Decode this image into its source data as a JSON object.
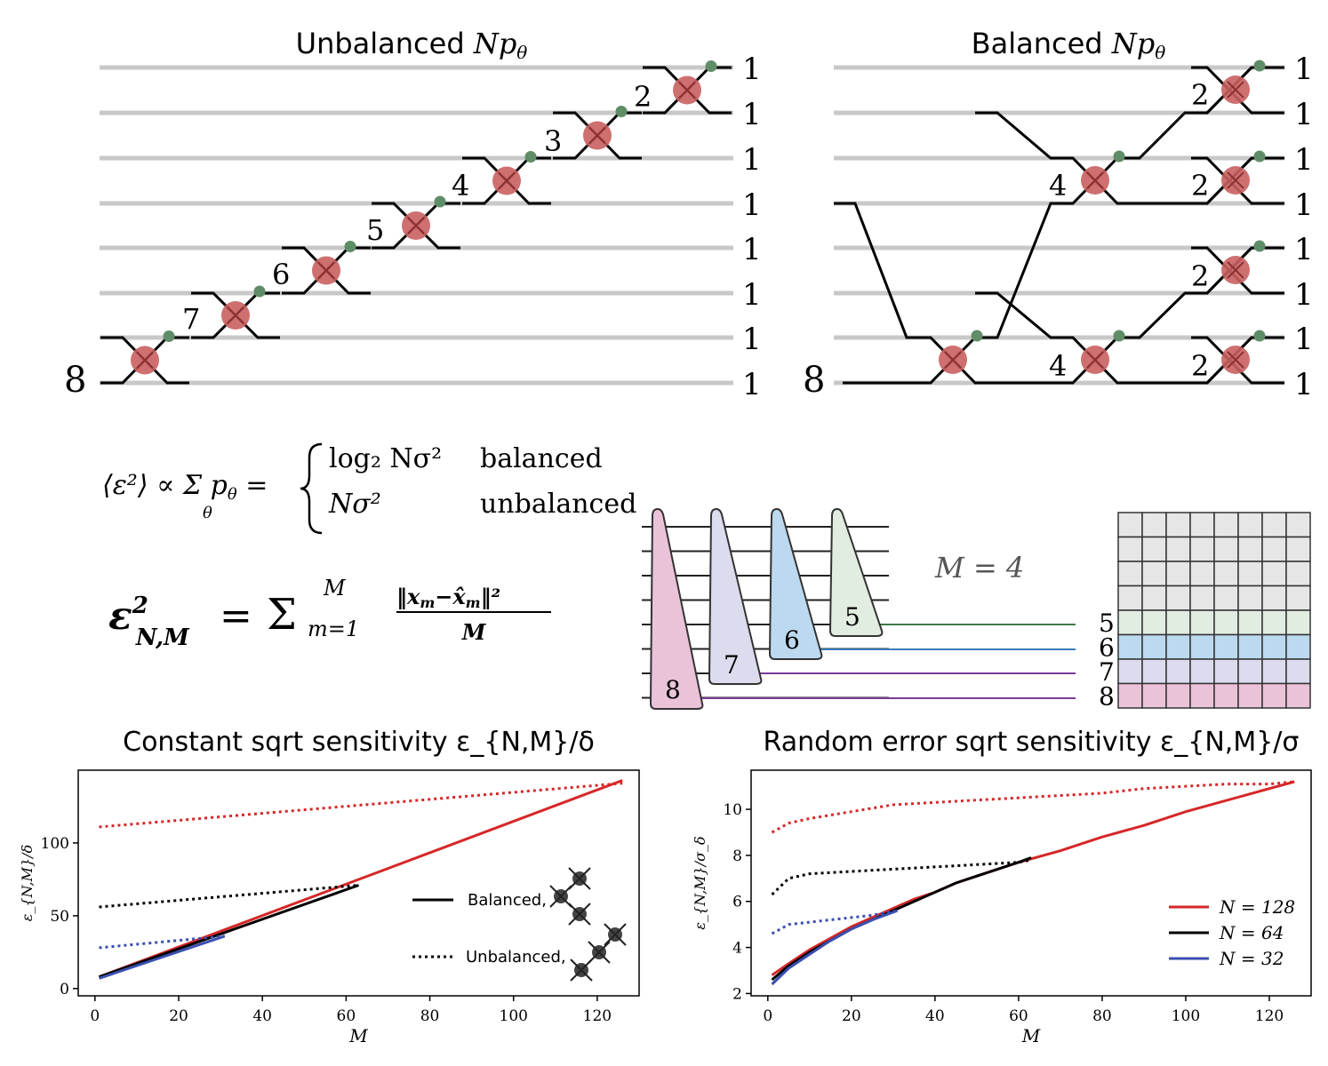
{
  "panels": {
    "unbalanced_title": "Unbalanced Np_θ",
    "balanced_title": "Balanced Np_θ"
  },
  "unbalanced_tree": {
    "input_label": "8",
    "output_labels": [
      "1",
      "1",
      "1",
      "1",
      "1",
      "1",
      "1",
      "1"
    ],
    "node_labels": [
      "7",
      "6",
      "5",
      "4",
      "3",
      "2"
    ]
  },
  "balanced_tree": {
    "input_label": "8",
    "output_labels": [
      "1",
      "1",
      "1",
      "1",
      "1",
      "1",
      "1",
      "1"
    ],
    "node_labels": [
      "4",
      "4",
      "2",
      "2",
      "2",
      "2"
    ]
  },
  "equations": {
    "eq1_lhs": "⟨ε²⟩ ∝ Σ_θ p_θ =",
    "eq1_case1": "log₂ Nσ²",
    "eq1_case1_label": "balanced",
    "eq1_case2": "Nσ²",
    "eq1_case2_label": "unbalanced",
    "eq2": "ε²_{N,M} = Σ_{m=1}^{M} ‖x_m − x̂_m‖² / M"
  },
  "schematic": {
    "m_label": "M = 4",
    "triangle_labels": [
      "8",
      "7",
      "6",
      "5"
    ],
    "row_labels": [
      "5",
      "6",
      "7",
      "8"
    ],
    "colors": {
      "c8": "#ebc3d9",
      "c7": "#dcdcee",
      "c6": "#bcd9ef",
      "c5": "#e1ede1",
      "grid_gray": "#e6e6e6"
    }
  },
  "colors": {
    "red": "#d62728",
    "black": "#000000",
    "blue": "#3a4fb0",
    "node_red": "#c96060",
    "node_green": "#5f8d67",
    "wire_gray": "#c8c8c8"
  },
  "legend": {
    "balanced": "Balanced,",
    "unbalanced": "Unbalanced,",
    "n128": "N = 128",
    "n64": "N = 64",
    "n32": "N = 32"
  },
  "chart_data": [
    {
      "type": "line",
      "title": "Constant sqrt sensitivity ε_{N,M}/δ",
      "xlabel": "M",
      "ylabel": "ε_{N,M}/δ",
      "xlim": [
        -4,
        130
      ],
      "ylim": [
        -5,
        150
      ],
      "xticks": [
        0,
        20,
        40,
        60,
        80,
        100,
        120
      ],
      "yticks": [
        0,
        50,
        100
      ],
      "series": [
        {
          "name": "Balanced, N = 128",
          "color": "#d62728",
          "style": "solid",
          "x": [
            1,
            126
          ],
          "y": [
            8,
            143
          ]
        },
        {
          "name": "Balanced, N = 64",
          "color": "#000000",
          "style": "solid",
          "x": [
            1,
            63
          ],
          "y": [
            8,
            71
          ]
        },
        {
          "name": "Balanced, N = 32",
          "color": "#3a4fb0",
          "style": "solid",
          "x": [
            1,
            31
          ],
          "y": [
            7,
            36
          ]
        },
        {
          "name": "Unbalanced, N = 128",
          "color": "#d62728",
          "style": "dotted",
          "x": [
            1,
            126
          ],
          "y": [
            111,
            141
          ]
        },
        {
          "name": "Unbalanced, N = 64",
          "color": "#000000",
          "style": "dotted",
          "x": [
            1,
            63
          ],
          "y": [
            56,
            71
          ]
        },
        {
          "name": "Unbalanced, N = 32",
          "color": "#3a4fb0",
          "style": "dotted",
          "x": [
            1,
            31
          ],
          "y": [
            28,
            36
          ]
        }
      ]
    },
    {
      "type": "line",
      "title": "Random error sqrt sensitivity ε_{N,M}/σ",
      "xlabel": "M",
      "ylabel": "ε_{N,M}/σ_δ",
      "xlim": [
        -4,
        130
      ],
      "ylim": [
        1.9,
        11.7
      ],
      "xticks": [
        0,
        20,
        40,
        60,
        80,
        100,
        120
      ],
      "yticks": [
        2,
        4,
        6,
        8,
        10
      ],
      "series": [
        {
          "name": "N = 128",
          "color": "#d62728",
          "style": "solid",
          "x": [
            1,
            5,
            10,
            15,
            20,
            25,
            30,
            35,
            40,
            45,
            50,
            55,
            60,
            70,
            80,
            90,
            100,
            110,
            120,
            126
          ],
          "y": [
            2.8,
            3.3,
            3.9,
            4.4,
            4.9,
            5.3,
            5.7,
            6.1,
            6.4,
            6.8,
            7.1,
            7.4,
            7.7,
            8.2,
            8.8,
            9.3,
            9.9,
            10.4,
            10.9,
            11.2
          ]
        },
        {
          "name": "N = 64",
          "color": "#000000",
          "style": "solid",
          "x": [
            1,
            5,
            10,
            15,
            20,
            25,
            30,
            35,
            40,
            45,
            50,
            55,
            60,
            63
          ],
          "y": [
            2.6,
            3.2,
            3.8,
            4.3,
            4.8,
            5.2,
            5.6,
            6.0,
            6.4,
            6.8,
            7.1,
            7.4,
            7.7,
            7.9
          ]
        },
        {
          "name": "N = 32",
          "color": "#3a4fb0",
          "style": "solid",
          "x": [
            1,
            5,
            10,
            15,
            20,
            25,
            31
          ],
          "y": [
            2.4,
            3.1,
            3.7,
            4.3,
            4.8,
            5.2,
            5.6
          ]
        },
        {
          "name": "",
          "color": "#d62728",
          "style": "dotted",
          "x": [
            1,
            5,
            10,
            20,
            30,
            40,
            50,
            60,
            70,
            80,
            90,
            100,
            110,
            120,
            126
          ],
          "y": [
            9.0,
            9.4,
            9.6,
            9.9,
            10.2,
            10.3,
            10.4,
            10.5,
            10.6,
            10.7,
            10.9,
            11.0,
            11.1,
            11.1,
            11.2
          ]
        },
        {
          "name": "",
          "color": "#000000",
          "style": "dotted",
          "x": [
            1,
            5,
            10,
            20,
            30,
            40,
            50,
            60,
            63
          ],
          "y": [
            6.3,
            7.0,
            7.2,
            7.3,
            7.4,
            7.5,
            7.6,
            7.7,
            7.8
          ]
        },
        {
          "name": "",
          "color": "#3a4fb0",
          "style": "dotted",
          "x": [
            1,
            5,
            10,
            15,
            20,
            25,
            31
          ],
          "y": [
            4.6,
            5.0,
            5.1,
            5.2,
            5.3,
            5.4,
            5.6
          ]
        }
      ]
    }
  ]
}
